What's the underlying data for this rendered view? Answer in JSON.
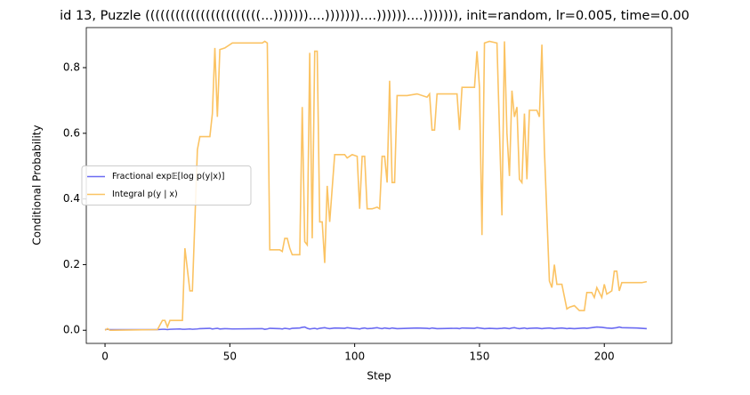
{
  "chart_data": {
    "type": "line",
    "title": "id 13, Puzzle (((((((((((((((((((((((...)))))))....)))))))....))))))....))))))), init=random, lr=0.005, time=0.00",
    "x_label": "Step",
    "y_label": "Conditional Probability",
    "x": [
      0,
      1,
      2,
      21,
      23,
      24,
      25,
      26,
      30,
      31,
      32,
      34,
      35,
      37,
      38,
      42,
      43,
      44,
      45,
      46,
      48,
      51,
      63,
      64,
      65,
      66,
      70,
      71,
      72,
      73,
      74,
      75,
      78,
      79,
      80,
      81,
      82,
      83,
      84,
      85,
      86,
      87,
      88,
      89,
      90,
      92,
      96,
      97,
      99,
      101,
      102,
      103,
      104,
      105,
      107,
      109,
      110,
      111,
      112,
      113,
      114,
      115,
      116,
      117,
      121,
      125,
      129,
      130,
      131,
      132,
      133,
      141,
      142,
      143,
      148,
      149,
      150,
      151,
      152,
      154,
      157,
      159,
      160,
      161,
      162,
      163,
      164,
      165,
      166,
      167,
      168,
      169,
      170,
      173,
      174,
      175,
      176,
      178,
      179,
      180,
      181,
      183,
      185,
      186,
      188,
      190,
      192,
      193,
      195,
      196,
      197,
      199,
      200,
      201,
      203,
      204,
      205,
      206,
      207,
      213,
      215,
      217
    ],
    "series": [
      {
        "name": "Fractional exp𝔼[log p(y|x)]",
        "color": "#6b6bf2",
        "values": [
          0.002,
          0.003,
          0.002,
          0.002,
          0.003,
          0.003,
          0.002,
          0.003,
          0.004,
          0.003,
          0.003,
          0.004,
          0.003,
          0.004,
          0.005,
          0.006,
          0.004,
          0.005,
          0.006,
          0.004,
          0.005,
          0.004,
          0.005,
          0.003,
          0.004,
          0.006,
          0.005,
          0.004,
          0.006,
          0.005,
          0.004,
          0.006,
          0.007,
          0.009,
          0.01,
          0.006,
          0.004,
          0.005,
          0.006,
          0.004,
          0.006,
          0.007,
          0.008,
          0.006,
          0.005,
          0.007,
          0.006,
          0.008,
          0.006,
          0.005,
          0.004,
          0.006,
          0.007,
          0.005,
          0.006,
          0.008,
          0.006,
          0.005,
          0.007,
          0.006,
          0.005,
          0.007,
          0.006,
          0.005,
          0.006,
          0.007,
          0.006,
          0.005,
          0.007,
          0.006,
          0.005,
          0.006,
          0.005,
          0.007,
          0.006,
          0.008,
          0.007,
          0.006,
          0.005,
          0.006,
          0.005,
          0.006,
          0.007,
          0.006,
          0.005,
          0.007,
          0.008,
          0.006,
          0.005,
          0.006,
          0.007,
          0.005,
          0.006,
          0.007,
          0.006,
          0.005,
          0.006,
          0.007,
          0.006,
          0.005,
          0.006,
          0.007,
          0.005,
          0.006,
          0.005,
          0.006,
          0.007,
          0.006,
          0.008,
          0.009,
          0.01,
          0.009,
          0.008,
          0.007,
          0.006,
          0.007,
          0.008,
          0.01,
          0.008,
          0.007,
          0.006,
          0.005
        ]
      },
      {
        "name": "Integral p(y | x)",
        "color": "#fbc363",
        "values": [
          0,
          0.005,
          0,
          0.002,
          0.03,
          0.03,
          0.01,
          0.03,
          0.03,
          0.03,
          0.25,
          0.12,
          0.12,
          0.55,
          0.59,
          0.59,
          0.66,
          0.86,
          0.65,
          0.855,
          0.86,
          0.875,
          0.875,
          0.88,
          0.875,
          0.245,
          0.245,
          0.24,
          0.28,
          0.28,
          0.25,
          0.23,
          0.23,
          0.68,
          0.27,
          0.26,
          0.845,
          0.28,
          0.85,
          0.85,
          0.33,
          0.33,
          0.205,
          0.44,
          0.33,
          0.535,
          0.535,
          0.525,
          0.535,
          0.53,
          0.37,
          0.53,
          0.53,
          0.37,
          0.37,
          0.375,
          0.37,
          0.53,
          0.53,
          0.45,
          0.76,
          0.45,
          0.45,
          0.715,
          0.715,
          0.72,
          0.71,
          0.72,
          0.61,
          0.61,
          0.72,
          0.72,
          0.61,
          0.74,
          0.74,
          0.85,
          0.74,
          0.29,
          0.875,
          0.88,
          0.875,
          0.35,
          0.88,
          0.6,
          0.47,
          0.73,
          0.65,
          0.68,
          0.46,
          0.45,
          0.66,
          0.46,
          0.67,
          0.67,
          0.65,
          0.87,
          0.55,
          0.15,
          0.13,
          0.2,
          0.14,
          0.14,
          0.065,
          0.07,
          0.075,
          0.06,
          0.06,
          0.115,
          0.115,
          0.1,
          0.13,
          0.1,
          0.14,
          0.11,
          0.12,
          0.18,
          0.18,
          0.12,
          0.145,
          0.145,
          0.145,
          0.148
        ]
      }
    ],
    "xlim": [
      -7.5,
      227
    ],
    "ylim": [
      -0.04,
      0.922
    ],
    "xticks": [
      0,
      50,
      100,
      150,
      200
    ],
    "yticks": [
      {
        "value": 0,
        "label": "0.0"
      },
      0.2,
      0.4,
      0.6,
      0.8
    ],
    "legend": "center left"
  }
}
